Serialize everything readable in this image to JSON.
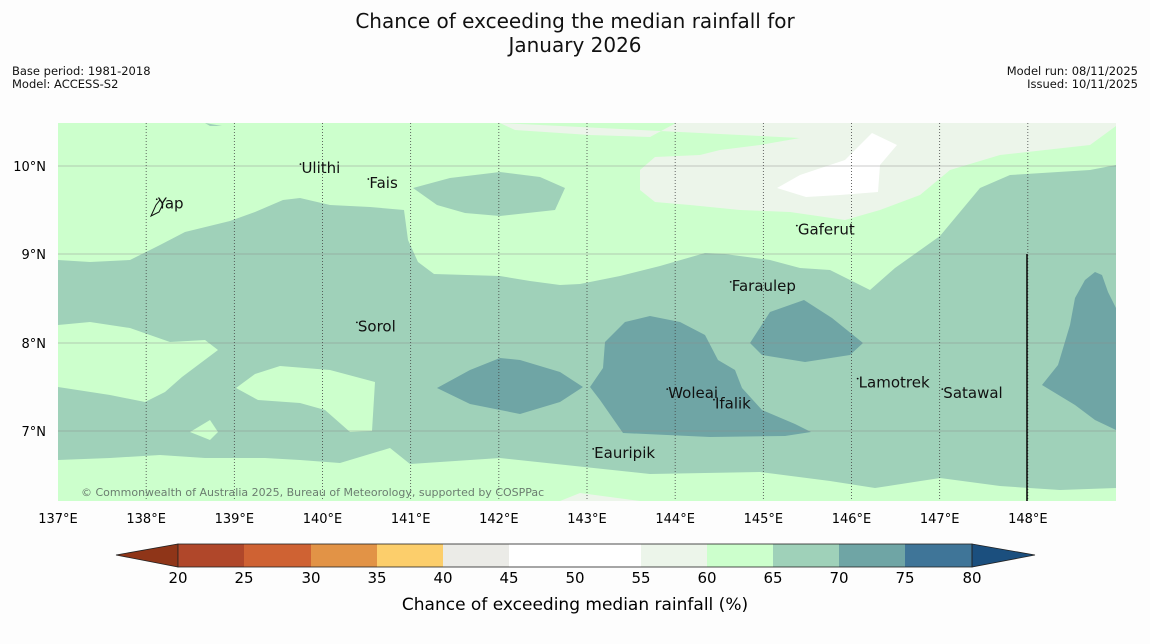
{
  "title": {
    "line1": "Chance of exceeding the median rainfall for",
    "line2": "January 2026"
  },
  "meta_left": {
    "base_period": "Base period: 1981-2018",
    "model": "Model: ACCESS-S2"
  },
  "meta_right": {
    "model_run": "Model run: 08/11/2025",
    "issued": "Issued: 10/11/2025"
  },
  "map": {
    "lon_range": [
      137.0,
      149.0
    ],
    "lat_range": [
      6.2,
      10.5
    ],
    "lon_ticks": [
      "137°E",
      "138°E",
      "139°E",
      "140°E",
      "141°E",
      "142°E",
      "143°E",
      "144°E",
      "145°E",
      "146°E",
      "147°E",
      "148°E"
    ],
    "lat_ticks": [
      "10°N",
      "9°N",
      "8°N",
      "7°N"
    ],
    "places": [
      {
        "name": "Ulithi",
        "lon": 139.75,
        "lat": 9.93
      },
      {
        "name": "Fais",
        "lon": 140.52,
        "lat": 9.76
      },
      {
        "name": "Yap",
        "lon": 138.12,
        "lat": 9.53
      },
      {
        "name": "Gaferut",
        "lon": 145.38,
        "lat": 9.23
      },
      {
        "name": "Faraulep",
        "lon": 144.63,
        "lat": 8.59
      },
      {
        "name": "Sorol",
        "lon": 140.39,
        "lat": 8.13
      },
      {
        "name": "Lamotrek",
        "lon": 146.07,
        "lat": 7.49
      },
      {
        "name": "Woleai",
        "lon": 143.91,
        "lat": 7.37
      },
      {
        "name": "Ifalik",
        "lon": 144.44,
        "lat": 7.25
      },
      {
        "name": "Satawal",
        "lon": 147.03,
        "lat": 7.37
      },
      {
        "name": "Eauripik",
        "lon": 143.07,
        "lat": 6.69
      }
    ],
    "copyright": "© Commonwealth of Australia 2025, Bureau of Meteorology, supported by COSPPac"
  },
  "colorbar": {
    "ticks": [
      "20",
      "25",
      "30",
      "35",
      "40",
      "45",
      "50",
      "55",
      "60",
      "65",
      "70",
      "75",
      "80"
    ],
    "colors": {
      "under": "#8f3518",
      "c20": "#b0472a",
      "c25": "#cf6233",
      "c30": "#e29346",
      "c35": "#fcce6b",
      "c40": "#ebebe7",
      "c45": "#ffffff",
      "c50": "#ffffff",
      "c55": "#ecf5ea",
      "c60": "#ccffcc",
      "c65": "#9fd1b9",
      "c70": "#6fa5a5",
      "c75": "#3f7598",
      "over": "#1b4f7e"
    },
    "label": "Chance of exceeding median rainfall (%)"
  }
}
